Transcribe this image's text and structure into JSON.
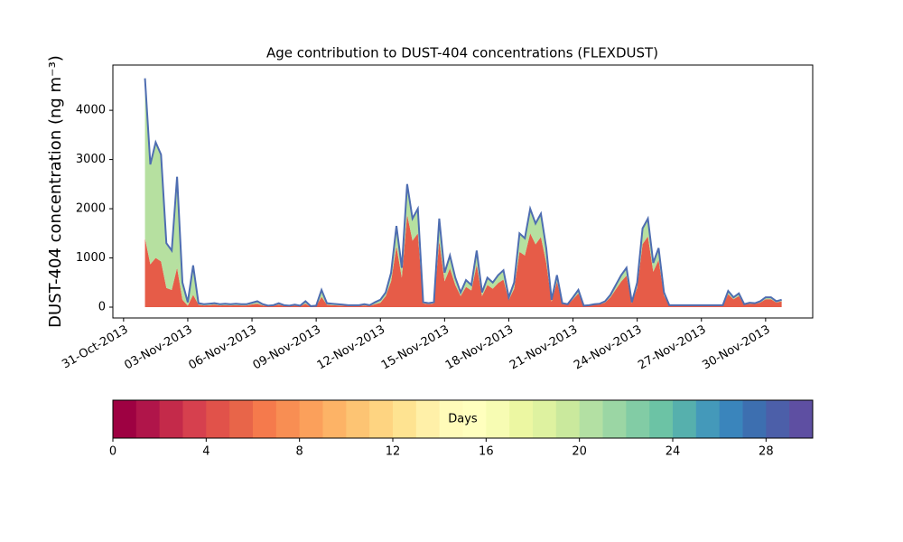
{
  "chart_data": {
    "type": "stacked_area",
    "title": "Age contribution to DUST-404 concentrations (FLEXDUST)",
    "y_label": "DUST-404 concentration (ng m⁻³)",
    "xlim": [
      -0.5,
      32.2
    ],
    "xticks": [
      {
        "value": 0,
        "label": "31-Oct-2013"
      },
      {
        "value": 3,
        "label": "03-Nov-2013"
      },
      {
        "value": 6,
        "label": "06-Nov-2013"
      },
      {
        "value": 9,
        "label": "09-Nov-2013"
      },
      {
        "value": 12,
        "label": "12-Nov-2013"
      },
      {
        "value": 15,
        "label": "15-Nov-2013"
      },
      {
        "value": 18,
        "label": "18-Nov-2013"
      },
      {
        "value": 21,
        "label": "21-Nov-2013"
      },
      {
        "value": 24,
        "label": "24-Nov-2013"
      },
      {
        "value": 27,
        "label": "27-Nov-2013"
      },
      {
        "value": 30,
        "label": "30-Nov-2013"
      }
    ],
    "ylim": [
      -220,
      4920
    ],
    "yticks": [
      0,
      1000,
      2000,
      3000,
      4000
    ],
    "outline_color": "#4e6db1",
    "x": [
      1,
      1.25,
      1.5,
      1.75,
      2,
      2.25,
      2.5,
      2.75,
      3,
      3.25,
      3.5,
      3.75,
      4,
      4.25,
      4.5,
      4.75,
      5,
      5.25,
      5.5,
      5.75,
      6,
      6.25,
      6.5,
      6.75,
      7,
      7.25,
      7.5,
      7.75,
      8,
      8.25,
      8.5,
      8.75,
      9,
      9.25,
      9.5,
      9.75,
      10,
      10.25,
      10.5,
      10.75,
      11,
      11.25,
      11.5,
      11.75,
      12,
      12.25,
      12.5,
      12.75,
      13,
      13.25,
      13.5,
      13.75,
      14,
      14.25,
      14.5,
      14.75,
      15,
      15.25,
      15.5,
      15.75,
      16,
      16.25,
      16.5,
      16.75,
      17,
      17.25,
      17.5,
      17.75,
      18,
      18.25,
      18.5,
      18.75,
      19,
      19.25,
      19.5,
      19.75,
      20,
      20.25,
      20.5,
      20.75,
      21,
      21.25,
      21.5,
      21.75,
      22,
      22.25,
      22.5,
      22.75,
      23,
      23.25,
      23.5,
      23.75,
      24,
      24.25,
      24.5,
      24.75,
      25,
      25.25,
      25.5,
      25.75,
      26,
      26.25,
      26.5,
      26.75,
      27,
      27.25,
      27.5,
      27.75,
      28,
      28.25,
      28.5,
      28.75,
      29,
      29.25,
      29.5,
      29.75,
      30,
      30.25,
      30.5,
      30.75
    ],
    "series": [
      {
        "color": "#e65c48",
        "values": [
          1400,
          870,
          1000,
          930,
          390,
          350,
          800,
          150,
          30,
          250,
          50,
          35,
          40,
          50,
          35,
          40,
          35,
          40,
          35,
          35,
          55,
          70,
          35,
          20,
          25,
          50,
          25,
          20,
          30,
          20,
          70,
          10,
          20,
          210,
          50,
          40,
          35,
          30,
          25,
          25,
          25,
          35,
          25,
          60,
          90,
          225,
          525,
          1240,
          600,
          1880,
          1350,
          1500,
          75,
          60,
          75,
          1350,
          525,
          790,
          450,
          225,
          410,
          340,
          860,
          225,
          450,
          375,
          490,
          560,
          150,
          375,
          1125,
          1050,
          1500,
          1275,
          1425,
          900,
          110,
          520,
          65,
          50,
          160,
          280,
          25,
          30,
          50,
          55,
          95,
          200,
          360,
          520,
          640,
          80,
          400,
          1280,
          1440,
          720,
          960,
          240,
          30,
          30,
          30,
          30,
          30,
          30,
          30,
          30,
          30,
          30,
          30,
          265,
          160,
          225,
          50,
          70,
          65,
          95,
          160,
          160,
          95,
          120
        ]
      },
      {
        "color": "#b6e0a0",
        "values": [
          3250,
          2030,
          2350,
          2170,
          910,
          800,
          1850,
          350,
          70,
          600,
          30,
          25,
          30,
          30,
          25,
          30,
          25,
          30,
          25,
          25,
          35,
          50,
          25,
          10,
          15,
          30,
          15,
          10,
          20,
          10,
          50,
          10,
          10,
          140,
          30,
          30,
          25,
          20,
          15,
          15,
          15,
          25,
          15,
          40,
          60,
          75,
          175,
          410,
          200,
          620,
          450,
          500,
          25,
          20,
          25,
          450,
          175,
          260,
          150,
          75,
          140,
          110,
          290,
          75,
          150,
          125,
          160,
          190,
          50,
          125,
          375,
          350,
          500,
          425,
          475,
          300,
          40,
          130,
          15,
          10,
          40,
          70,
          5,
          10,
          10,
          15,
          25,
          50,
          90,
          130,
          160,
          20,
          100,
          320,
          360,
          180,
          240,
          60,
          10,
          10,
          10,
          10,
          10,
          10,
          10,
          10,
          10,
          10,
          10,
          65,
          40,
          55,
          10,
          20,
          15,
          25,
          40,
          40,
          25,
          30
        ]
      }
    ],
    "colorbar": {
      "label": "Days",
      "lim": [
        0,
        30
      ],
      "ticks": [
        0,
        4,
        8,
        12,
        16,
        20,
        24,
        28
      ],
      "colors": [
        "#9e0142",
        "#b0154a",
        "#c42a4a",
        "#d6404e",
        "#e1524a",
        "#e86549",
        "#f57a4c",
        "#f88e53",
        "#fba05b",
        "#fdb366",
        "#fdc473",
        "#fed481",
        "#fee391",
        "#fff0a8",
        "#fffbb9",
        "#ffffbe",
        "#f7fcb3",
        "#ecf7a2",
        "#def2a0",
        "#cae99d",
        "#b3e0a3",
        "#9bd6a4",
        "#82cca5",
        "#6cc3a5",
        "#56b0ad",
        "#4499ba",
        "#3a85bc",
        "#3d6fb0",
        "#4c5fa9",
        "#5e4fa2"
      ]
    }
  }
}
